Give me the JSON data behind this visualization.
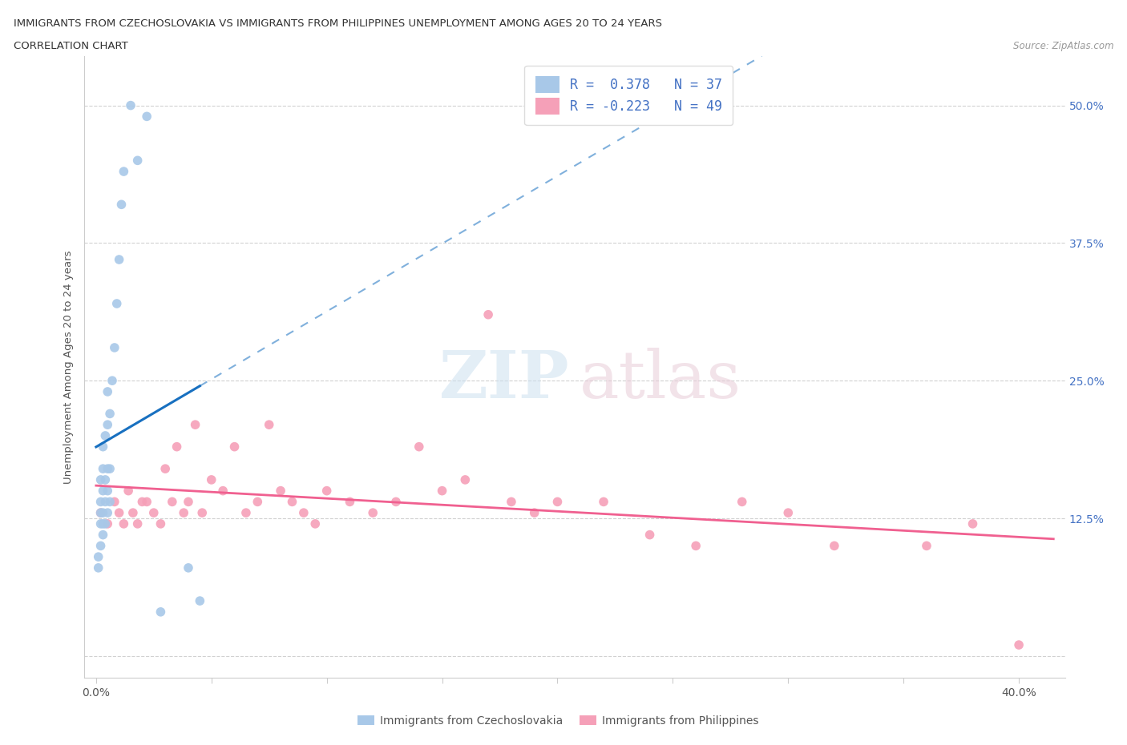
{
  "title_line1": "IMMIGRANTS FROM CZECHOSLOVAKIA VS IMMIGRANTS FROM PHILIPPINES UNEMPLOYMENT AMONG AGES 20 TO 24 YEARS",
  "title_line2": "CORRELATION CHART",
  "source": "Source: ZipAtlas.com",
  "ylabel": "Unemployment Among Ages 20 to 24 years",
  "xlim": [
    -0.005,
    0.42
  ],
  "ylim": [
    -0.02,
    0.545
  ],
  "yticks": [
    0.0,
    0.125,
    0.25,
    0.375,
    0.5
  ],
  "yticklabels_right": [
    "",
    "12.5%",
    "25.0%",
    "37.5%",
    "50.0%"
  ],
  "R_czech": 0.378,
  "N_czech": 37,
  "R_phil": -0.223,
  "N_phil": 49,
  "czech_color": "#a8c8e8",
  "phil_color": "#f5a0b8",
  "czech_line_color": "#1870c0",
  "phil_line_color": "#f06090",
  "czech_x": [
    0.001,
    0.001,
    0.002,
    0.002,
    0.002,
    0.002,
    0.002,
    0.003,
    0.003,
    0.003,
    0.003,
    0.003,
    0.003,
    0.004,
    0.004,
    0.004,
    0.004,
    0.005,
    0.005,
    0.005,
    0.005,
    0.005,
    0.006,
    0.006,
    0.006,
    0.007,
    0.008,
    0.009,
    0.01,
    0.011,
    0.012,
    0.015,
    0.018,
    0.022,
    0.028,
    0.04,
    0.045
  ],
  "czech_y": [
    0.08,
    0.09,
    0.1,
    0.12,
    0.13,
    0.14,
    0.16,
    0.11,
    0.12,
    0.13,
    0.15,
    0.17,
    0.19,
    0.12,
    0.14,
    0.16,
    0.2,
    0.13,
    0.15,
    0.17,
    0.21,
    0.24,
    0.14,
    0.17,
    0.22,
    0.25,
    0.28,
    0.32,
    0.36,
    0.41,
    0.44,
    0.5,
    0.45,
    0.49,
    0.04,
    0.08,
    0.05
  ],
  "phil_x": [
    0.002,
    0.005,
    0.008,
    0.01,
    0.012,
    0.014,
    0.016,
    0.018,
    0.02,
    0.022,
    0.025,
    0.028,
    0.03,
    0.033,
    0.035,
    0.038,
    0.04,
    0.043,
    0.046,
    0.05,
    0.055,
    0.06,
    0.065,
    0.07,
    0.075,
    0.08,
    0.085,
    0.09,
    0.095,
    0.1,
    0.11,
    0.12,
    0.13,
    0.14,
    0.15,
    0.16,
    0.17,
    0.18,
    0.19,
    0.2,
    0.22,
    0.24,
    0.26,
    0.28,
    0.3,
    0.32,
    0.36,
    0.38,
    0.4
  ],
  "phil_y": [
    0.13,
    0.12,
    0.14,
    0.13,
    0.12,
    0.15,
    0.13,
    0.12,
    0.14,
    0.14,
    0.13,
    0.12,
    0.17,
    0.14,
    0.19,
    0.13,
    0.14,
    0.21,
    0.13,
    0.16,
    0.15,
    0.19,
    0.13,
    0.14,
    0.21,
    0.15,
    0.14,
    0.13,
    0.12,
    0.15,
    0.14,
    0.13,
    0.14,
    0.19,
    0.15,
    0.16,
    0.31,
    0.14,
    0.13,
    0.14,
    0.14,
    0.11,
    0.1,
    0.14,
    0.13,
    0.1,
    0.1,
    0.12,
    0.01
  ],
  "phil_regression": [
    -0.0357,
    0.1558
  ],
  "czech_regression": [
    8.5,
    0.115
  ]
}
